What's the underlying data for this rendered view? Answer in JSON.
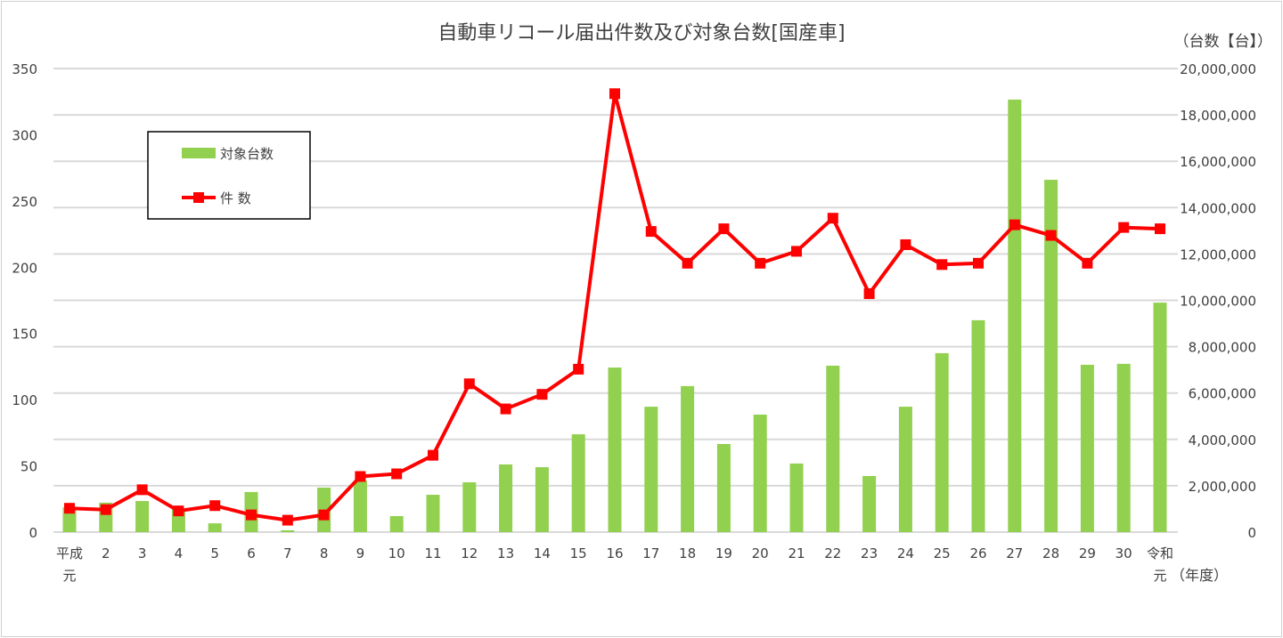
{
  "chart_data": {
    "type": "bar+line",
    "title": "自動車リコール届出件数及び対象台数[国産車]",
    "right_axis_label": "（台数【台】）",
    "x_axis_unit": "（年度）",
    "categories": [
      "平成元",
      "2",
      "3",
      "4",
      "5",
      "6",
      "7",
      "8",
      "9",
      "10",
      "11",
      "12",
      "13",
      "14",
      "15",
      "16",
      "17",
      "18",
      "19",
      "20",
      "21",
      "22",
      "23",
      "24",
      "25",
      "26",
      "27",
      "28",
      "29",
      "30",
      "令和元"
    ],
    "left_axis": {
      "ylim": [
        0,
        350
      ],
      "ticks": [
        "0",
        "50",
        "100",
        "150",
        "200",
        "250",
        "300",
        "350"
      ]
    },
    "right_axis": {
      "ylim": [
        0,
        20000000
      ],
      "ticks": [
        "0",
        "2,000,000",
        "4,000,000",
        "6,000,000",
        "8,000,000",
        "10,000,000",
        "12,000,000",
        "14,000,000",
        "16,000,000",
        "18,000,000",
        "20,000,000"
      ]
    },
    "grid": true,
    "legend_position": "top-left",
    "series": [
      {
        "name": "対象台数",
        "type": "bar",
        "axis": "right",
        "color": "#92d050",
        "values": [
          1070000,
          1270000,
          1340000,
          1000000,
          380000,
          1730000,
          80000,
          1920000,
          2230000,
          690000,
          1610000,
          2150000,
          2920000,
          2800000,
          4220000,
          7100000,
          5410000,
          6300000,
          3800000,
          5070000,
          2960000,
          7180000,
          2420000,
          5410000,
          7720000,
          9140000,
          18660000,
          15200000,
          7220000,
          7260000,
          9900000
        ]
      },
      {
        "name": "件 数",
        "type": "line",
        "axis": "left",
        "color": "#ff0000",
        "values": [
          18,
          17,
          32,
          16,
          20,
          13,
          9,
          13,
          42,
          44,
          58,
          112,
          93,
          104,
          123,
          331,
          227,
          203,
          229,
          203,
          212,
          237,
          180,
          217,
          202,
          203,
          232,
          224,
          203,
          230,
          229
        ]
      }
    ]
  }
}
